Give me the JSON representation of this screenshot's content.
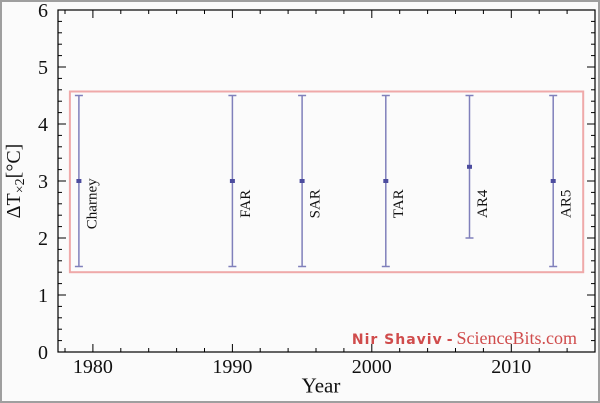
{
  "page": {
    "background": "#fbfbfb",
    "border_color": "#9f9f9f"
  },
  "credit": {
    "author": "Nir Shaviv",
    "separator": "-",
    "site": "ScienceBits.com",
    "color": "#d04c4c"
  },
  "chart_data": {
    "type": "scatter",
    "title": "",
    "xlabel": "Year",
    "ylabel": "ΔT×2[°C]",
    "ylabel_parts": {
      "prefix": "ΔT",
      "subscript": "×2",
      "suffix": "[°C]"
    },
    "xlim": [
      1977.5,
      2016
    ],
    "ylim": [
      0,
      6
    ],
    "x_ticks": [
      1980,
      1990,
      2000,
      2010
    ],
    "x_minor_step": 2,
    "y_ticks": [
      0,
      1,
      2,
      3,
      4,
      5,
      6
    ],
    "y_minor_step": 0.2,
    "grid": "off",
    "legend": "none",
    "axis_color": "#000000",
    "series_color": "#8080bb",
    "point_color": "#4c4c9e",
    "highlight_box": {
      "x0": 1978.35,
      "x1": 2015.15,
      "y0": 1.4,
      "y1": 4.57,
      "color": "#efa9a9"
    },
    "points": [
      {
        "label": "Charney",
        "year": 1979,
        "value": 3.0,
        "low": 1.5,
        "high": 4.5
      },
      {
        "label": "FAR",
        "year": 1990,
        "value": 3.0,
        "low": 1.5,
        "high": 4.5
      },
      {
        "label": "SAR",
        "year": 1995,
        "value": 3.0,
        "low": 1.5,
        "high": 4.5
      },
      {
        "label": "TAR",
        "year": 2001,
        "value": 3.0,
        "low": 1.5,
        "high": 4.5
      },
      {
        "label": "AR4",
        "year": 2007,
        "value": 3.25,
        "low": 2.0,
        "high": 4.5
      },
      {
        "label": "AR5",
        "year": 2013,
        "value": 3.0,
        "low": 1.5,
        "high": 4.5
      }
    ]
  }
}
